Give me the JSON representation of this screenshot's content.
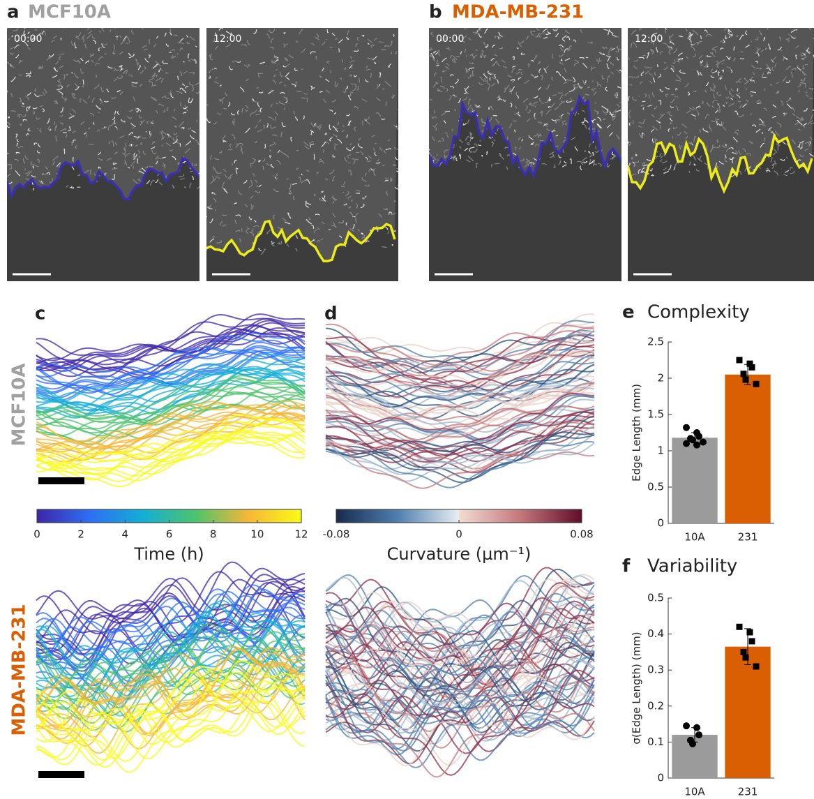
{
  "panel_a": {
    "label": "a",
    "title": "MCF10A",
    "timestamps": [
      "00:00",
      "12:00"
    ]
  },
  "panel_b": {
    "label": "b",
    "title": "MDA-MB-231",
    "timestamps": [
      "00:00",
      "12:00"
    ]
  },
  "panel_c": {
    "label": "c"
  },
  "panel_d": {
    "label": "d"
  },
  "row_labels": [
    "MCF10A",
    "MDA-MB-231"
  ],
  "colorbars": [
    {
      "label": "Time (h)",
      "lim": [
        0,
        12
      ],
      "ticks": [
        0,
        2,
        4,
        6,
        8,
        10,
        12
      ]
    },
    {
      "label": "Curvature (µm⁻¹)",
      "lim": [
        -0.08,
        0.08
      ],
      "ticks": [
        -0.08,
        0,
        0.08
      ]
    }
  ],
  "chart_data": [
    {
      "type": "bar",
      "panel_label": "e",
      "title": "Complexity",
      "y_label": "Edge Length (mm)",
      "categories": [
        "10A",
        "231"
      ],
      "values": [
        1.18,
        2.05
      ],
      "errors": [
        0.07,
        0.14
      ],
      "points": [
        [
          1.32,
          1.25,
          1.2,
          1.17,
          1.15,
          1.12,
          1.1,
          1.08
        ],
        [
          2.25,
          2.2,
          2.15,
          2.06,
          1.98,
          1.92
        ]
      ],
      "colors": [
        "#9b9b9b",
        "#d95f02"
      ],
      "ylim": [
        0,
        2.5
      ],
      "yticks": [
        0,
        0.5,
        1,
        1.5,
        2,
        2.5
      ]
    },
    {
      "type": "bar",
      "panel_label": "f",
      "title": "Variability",
      "y_label": "σ(Edge Length) (mm)",
      "categories": [
        "10A",
        "231"
      ],
      "values": [
        0.12,
        0.365
      ],
      "errors": [
        0.02,
        0.05
      ],
      "points": [
        [
          0.145,
          0.14,
          0.12,
          0.105,
          0.095
        ],
        [
          0.42,
          0.405,
          0.38,
          0.35,
          0.335,
          0.31
        ]
      ],
      "colors": [
        "#9b9b9b",
        "#d95f02"
      ],
      "ylim": [
        0,
        0.5
      ],
      "yticks": [
        0,
        0.1,
        0.2,
        0.3,
        0.4,
        0.5
      ]
    }
  ]
}
